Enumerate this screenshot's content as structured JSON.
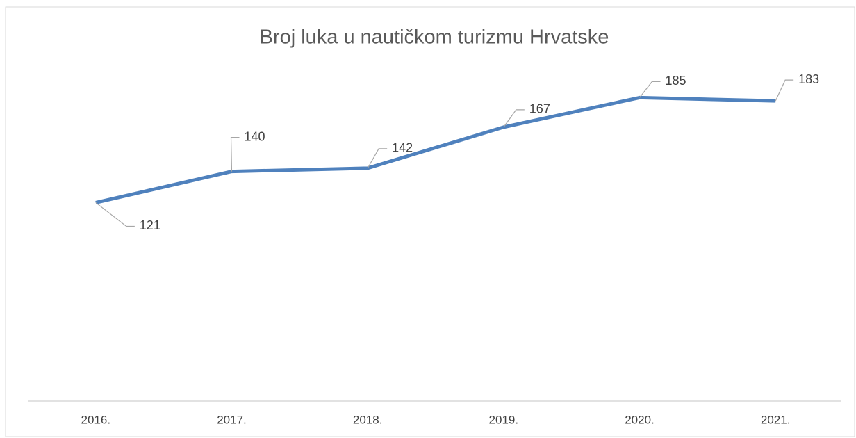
{
  "chart_data": {
    "type": "line",
    "title": "Broj luka u nautičkom turizmu Hrvatske",
    "categories": [
      "2016.",
      "2017.",
      "2018.",
      "2019.",
      "2020.",
      "2021."
    ],
    "values": [
      121,
      140,
      142,
      167,
      185,
      183
    ],
    "color": "#4f81bd",
    "ylim": [
      0,
      200
    ],
    "grid": false,
    "data_labels": true
  }
}
